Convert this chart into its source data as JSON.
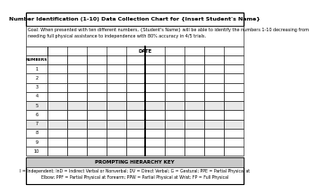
{
  "title": "Number Identification (1-10) Data Collection Chart for {Insert Student's Name}",
  "goal_text": "Goal: When presented with ten different numbers, {Student's Name} will be able to identify the numbers 1-10 decreasing from\nneeding full physical assistance to independence with 80% accuracy in 4/5 trials.",
  "date_label": "DATE",
  "numbers_label": "NUMBERS",
  "row_labels": [
    "1",
    "2",
    "3",
    "4",
    "5",
    "6",
    "7",
    "8",
    "9",
    "10"
  ],
  "num_date_cols": 10,
  "prompting_title": "PROMPTING HIERARCHY KEY",
  "prompting_text": "I = Independent; InD = Indirect Verbal or Nonverbal; DV = Direct Verbal; G = Gestural; PPE = Partial Physical at\nElbow; PPF = Partial Physical at Forearm; PPW = Partial Physical at Wrist; FP = Full Physical",
  "bg_color": "#ffffff",
  "shaded_row_color": "#e8e8e8",
  "key_header_color": "#c8c8c8",
  "bold_col_after": 5,
  "title_fontsize": 4.5,
  "goal_fontsize": 3.5,
  "cell_fontsize": 3.5,
  "key_title_fontsize": 4.0,
  "key_body_fontsize": 3.3,
  "lw_thin": 0.4,
  "lw_thick": 0.9,
  "lw_bold_col": 1.2
}
